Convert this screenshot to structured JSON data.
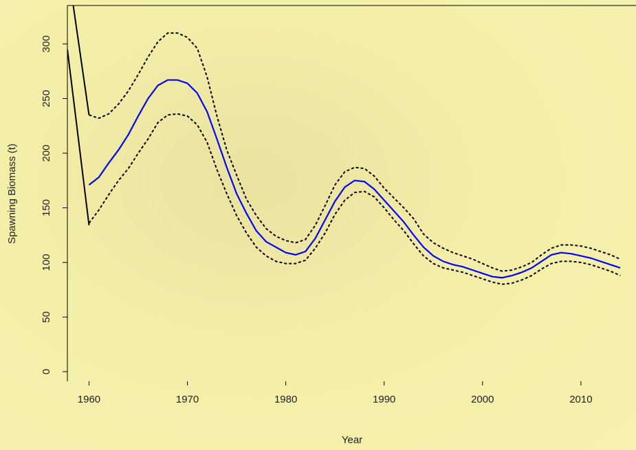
{
  "chart_data": {
    "type": "line",
    "y_label": "Spawning Biomass (t)",
    "x_label": "Year",
    "xlim": [
      1957.8,
      2015.6
    ],
    "ylim": [
      -8.8,
      335.2
    ],
    "xticks": [
      1960,
      1970,
      1980,
      1990,
      2000,
      2010
    ],
    "yticks": [
      0,
      50,
      100,
      150,
      200,
      250,
      300
    ],
    "x": [
      1960,
      1961,
      1962,
      1963,
      1964,
      1965,
      1966,
      1967,
      1968,
      1969,
      1970,
      1971,
      1972,
      1973,
      1974,
      1975,
      1976,
      1977,
      1978,
      1979,
      1980,
      1981,
      1982,
      1983,
      1984,
      1985,
      1986,
      1987,
      1988,
      1989,
      1990,
      1991,
      1992,
      1993,
      1994,
      1995,
      1996,
      1997,
      1998,
      1999,
      2000,
      2001,
      2002,
      2003,
      2004,
      2005,
      2006,
      2007,
      2008,
      2009,
      2010,
      2011,
      2012,
      2013,
      2014
    ],
    "series": [
      {
        "color": "#0000ff",
        "dash": false,
        "values": [
          171,
          178,
          191,
          203,
          217,
          234,
          250,
          262,
          267,
          267,
          264,
          255,
          238,
          213,
          187,
          163,
          145,
          129,
          119,
          114,
          109,
          107,
          110,
          122,
          139,
          156,
          169,
          175,
          174,
          167,
          157,
          147,
          137,
          125,
          114,
          106,
          101,
          98,
          96,
          93,
          90,
          87,
          86,
          88,
          91,
          95,
          101,
          107,
          109,
          108,
          106,
          104,
          101,
          98,
          95
        ]
      },
      {
        "color": "#000000",
        "dash": true,
        "values": [
          235,
          232,
          236,
          245,
          257,
          272,
          288,
          302,
          310,
          310,
          306,
          296,
          270,
          234,
          203,
          180,
          158,
          143,
          131,
          124,
          120,
          118,
          121,
          134,
          152,
          171,
          183,
          187,
          186,
          179,
          168,
          159,
          150,
          140,
          126,
          118,
          113,
          109,
          106,
          103,
          99,
          95,
          92,
          93,
          96,
          100,
          107,
          113,
          116,
          116,
          115,
          113,
          110,
          107,
          103
        ]
      },
      {
        "color": "#000000",
        "dash": true,
        "values": [
          136,
          148,
          162,
          175,
          186,
          200,
          213,
          228,
          235,
          236,
          234,
          226,
          210,
          185,
          163,
          143,
          127,
          114,
          106,
          101,
          99,
          99,
          102,
          113,
          127,
          144,
          157,
          164,
          165,
          160,
          150,
          139,
          129,
          117,
          106,
          99,
          95,
          93,
          91,
          88,
          85,
          82,
          80,
          81,
          84,
          88,
          94,
          99,
          101,
          101,
          100,
          98,
          95,
          92,
          88
        ]
      },
      {
        "color": "#000000",
        "dash": false,
        "x": [
          1958.4,
          1960
        ],
        "values": [
          335,
          235
        ]
      },
      {
        "color": "#000000",
        "dash": false,
        "x": [
          1957.8,
          1960
        ],
        "values": [
          295,
          134
        ]
      }
    ]
  }
}
